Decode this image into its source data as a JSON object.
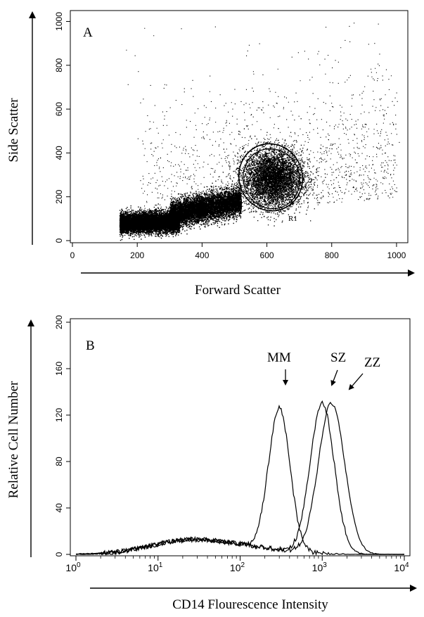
{
  "chart_data": [
    {
      "panel": "A",
      "type": "scatter",
      "xlabel": "Forward Scatter",
      "ylabel": "Side Scatter",
      "xlim": [
        0,
        1024
      ],
      "ylim": [
        0,
        1024
      ],
      "xticks": [
        "0",
        "200",
        "400",
        "600",
        "800",
        "1000"
      ],
      "yticks": [
        "0",
        "200",
        "400",
        "600",
        "800",
        "1000"
      ],
      "gate": {
        "label": "R1",
        "center": [
          618,
          285
        ],
        "radii": [
          80,
          140
        ]
      },
      "populations": [
        {
          "x_range": [
            145,
            330
          ],
          "y_center": 80,
          "spread": 40,
          "density": "very high"
        },
        {
          "x_range": [
            300,
            520
          ],
          "y_center": 120,
          "spread": 55,
          "density": "high"
        },
        {
          "x_range": [
            520,
            700
          ],
          "y_center": 285,
          "spread": 85,
          "density": "high"
        },
        {
          "x_range": [
            200,
            1024
          ],
          "y_center": 400,
          "spread": 250,
          "density": "sparse"
        }
      ],
      "grid": false
    },
    {
      "panel": "B",
      "type": "line",
      "xlabel": "CD14 Flourescence Intensity",
      "ylabel": "Relative Cell Number",
      "xscale": "log",
      "xlim": [
        1,
        10000
      ],
      "ylim": [
        0,
        200
      ],
      "xticks": [
        {
          "base": "10",
          "exp": "0"
        },
        {
          "base": "10",
          "exp": "1"
        },
        {
          "base": "10",
          "exp": "2"
        },
        {
          "base": "10",
          "exp": "3"
        },
        {
          "base": "10",
          "exp": "4"
        }
      ],
      "yticks": [
        "0",
        "40",
        "80",
        "120",
        "160",
        "200"
      ],
      "series": [
        {
          "name": "MM",
          "peak_x": 300,
          "peak_y": 122
        },
        {
          "name": "SZ",
          "peak_x": 1000,
          "peak_y": 130
        },
        {
          "name": "ZZ",
          "peak_x": 1300,
          "peak_y": 130
        }
      ],
      "annotations": [
        {
          "text": "MM",
          "target_x": 300,
          "target_y": 122
        },
        {
          "text": "SZ",
          "target_x": 1000,
          "target_y": 130
        },
        {
          "text": "ZZ",
          "target_x": 1300,
          "target_y": 130
        }
      ],
      "grid": false
    }
  ]
}
